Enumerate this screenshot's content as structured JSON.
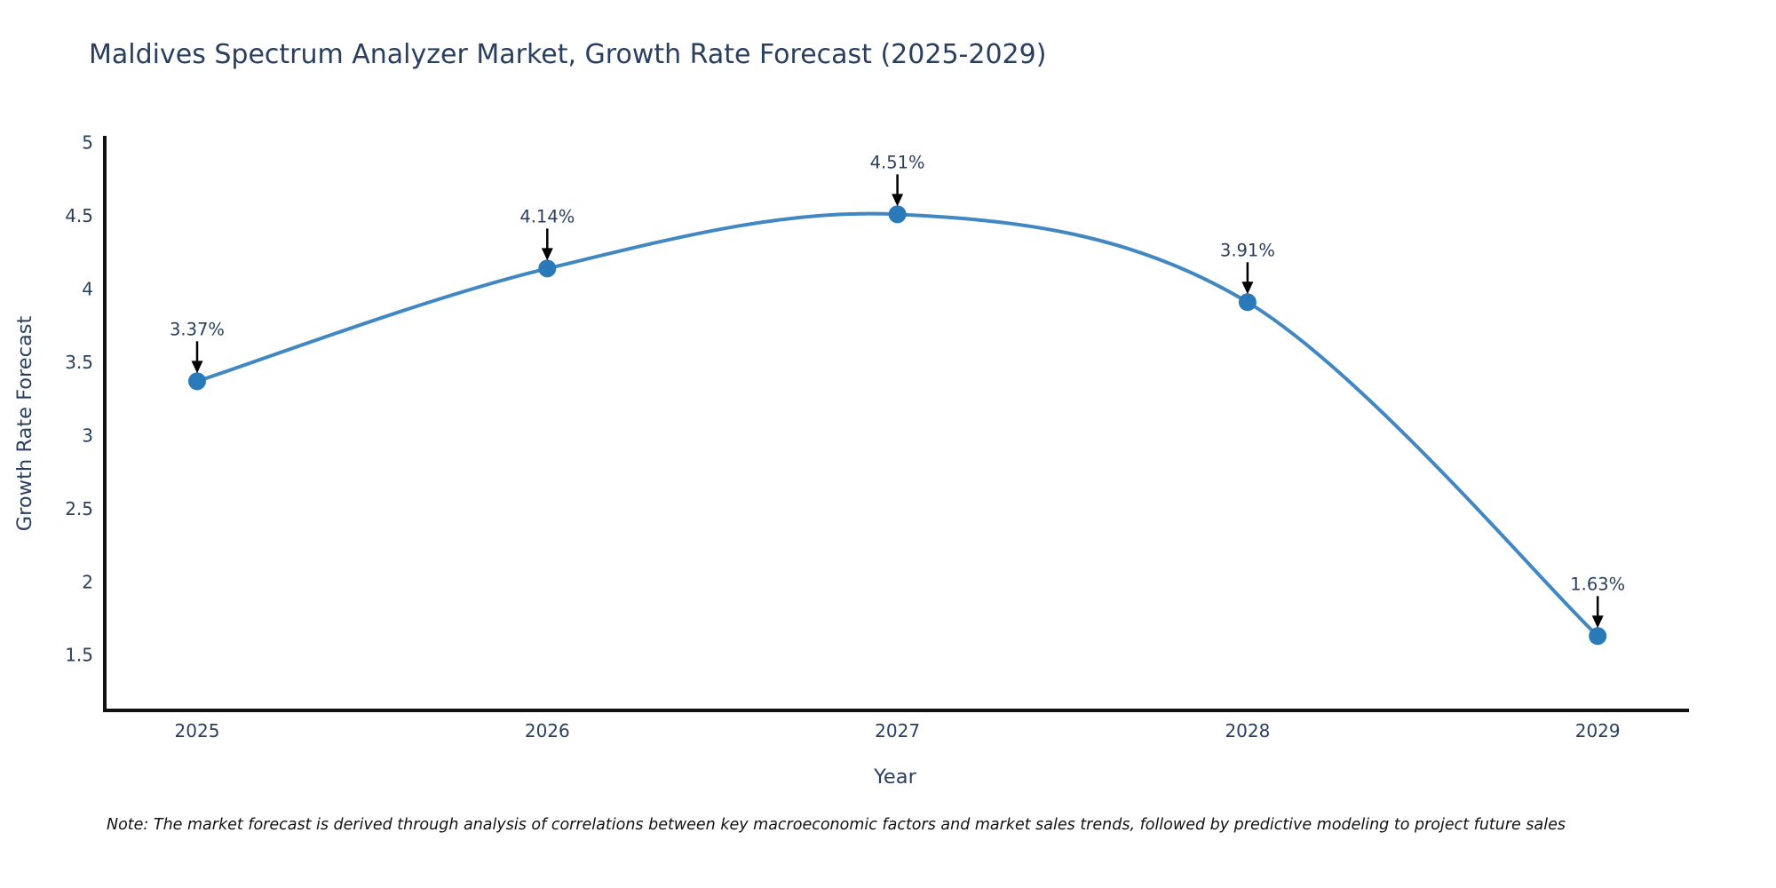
{
  "note": "Note: The market forecast is derived through analysis of correlations between key macroeconomic factors and market sales trends, followed by predictive modeling to project future sales",
  "chart_data": {
    "type": "line",
    "title": "Maldives Spectrum Analyzer Market, Growth Rate Forecast (2025-2029)",
    "xlabel": "Year",
    "ylabel": "Growth Rate Forecast",
    "x": [
      2025,
      2026,
      2027,
      2028,
      2029
    ],
    "values": [
      3.37,
      4.14,
      4.51,
      3.91,
      1.63
    ],
    "point_labels": [
      "3.37%",
      "4.14%",
      "4.51%",
      "3.91%",
      "1.63%"
    ],
    "yticks": [
      5,
      4.5,
      4,
      3.5,
      3,
      2.5,
      2,
      1.5
    ],
    "ylim": [
      1.12,
      5.03
    ],
    "xlim": [
      2024.73,
      2029.26
    ],
    "line_shape": "spline",
    "grid": false,
    "legend": false,
    "colors": {
      "line": "#4187c2",
      "marker": "#2a79b8",
      "arrow": "#000000",
      "axis": "#111111",
      "tick_text": "#2a3f5f",
      "annotation_text": "#2a3f5f"
    }
  }
}
